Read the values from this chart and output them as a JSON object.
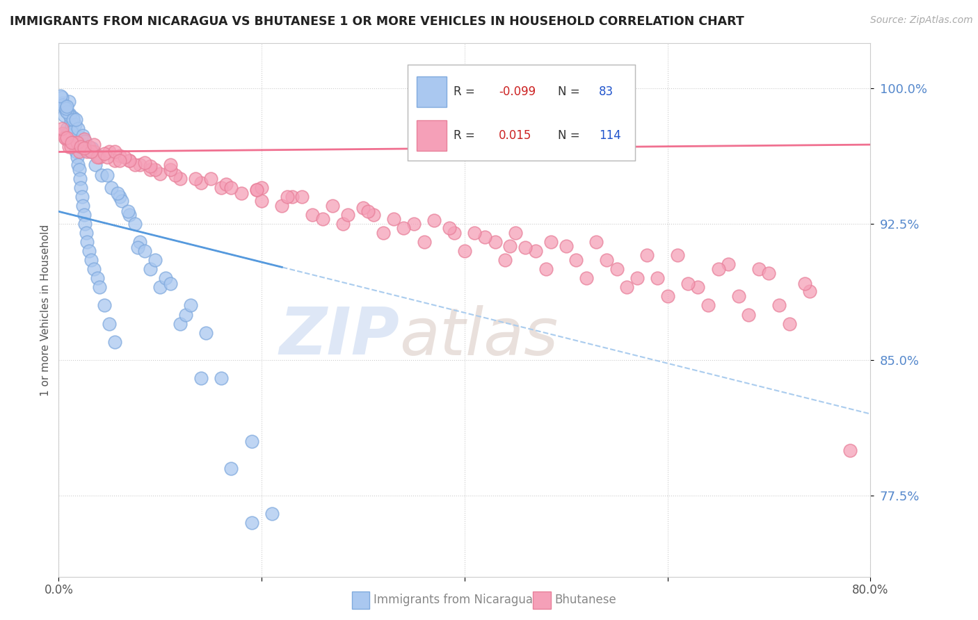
{
  "title": "IMMIGRANTS FROM NICARAGUA VS BHUTANESE 1 OR MORE VEHICLES IN HOUSEHOLD CORRELATION CHART",
  "source": "Source: ZipAtlas.com",
  "xlabel_blue": "Immigrants from Nicaragua",
  "xlabel_pink": "Bhutanese",
  "ylabel": "1 or more Vehicles in Household",
  "xlim": [
    0.0,
    80.0
  ],
  "ylim": [
    73.0,
    102.5
  ],
  "yticks": [
    77.5,
    85.0,
    92.5,
    100.0
  ],
  "xticks": [
    0.0,
    20.0,
    40.0,
    60.0,
    80.0
  ],
  "blue_color": "#aac8f0",
  "pink_color": "#f5a0b8",
  "blue_edge": "#80aade",
  "pink_edge": "#e8809a",
  "trend_blue_color": "#5599dd",
  "trend_pink_color": "#f07090",
  "trend_dashed_color": "#aaccee",
  "legend_blue_r": "-0.099",
  "legend_blue_n": "83",
  "legend_pink_r": "0.015",
  "legend_pink_n": "114",
  "blue_trend_x0": 0.0,
  "blue_trend_y0": 93.2,
  "blue_trend_x1": 80.0,
  "blue_trend_y1": 82.0,
  "blue_solid_x1": 22.0,
  "pink_trend_x0": 0.0,
  "pink_trend_y0": 96.5,
  "pink_trend_x1": 80.0,
  "pink_trend_y1": 96.9,
  "blue_scatter_x": [
    0.4,
    0.5,
    0.6,
    0.7,
    0.8,
    0.9,
    1.0,
    1.1,
    1.2,
    1.3,
    1.4,
    1.5,
    1.6,
    1.7,
    1.8,
    1.9,
    2.0,
    2.1,
    2.2,
    2.3,
    2.4,
    2.5,
    2.6,
    2.7,
    2.8,
    3.0,
    3.2,
    3.5,
    3.8,
    4.0,
    4.5,
    5.0,
    5.5,
    6.0,
    7.0,
    8.0,
    9.0,
    10.0,
    12.0,
    14.0,
    17.0,
    19.0,
    0.3,
    0.6,
    1.1,
    1.6,
    2.2,
    3.1,
    0.4,
    0.8,
    1.3,
    2.0,
    2.7,
    3.6,
    4.2,
    5.2,
    6.2,
    7.5,
    0.2,
    0.7,
    1.4,
    1.9,
    2.4,
    3.3,
    4.8,
    6.8,
    0.8,
    1.7,
    2.6,
    3.9,
    5.8,
    7.8,
    10.5,
    14.5,
    19.0,
    21.0,
    12.5,
    16.0,
    8.5,
    9.5,
    11.0,
    13.0
  ],
  "blue_scatter_y": [
    99.2,
    98.5,
    99.0,
    98.8,
    97.8,
    97.5,
    99.3,
    98.6,
    98.2,
    97.9,
    98.4,
    97.0,
    96.8,
    96.5,
    96.2,
    95.8,
    95.5,
    95.0,
    94.5,
    94.0,
    93.5,
    93.0,
    92.5,
    92.0,
    91.5,
    91.0,
    90.5,
    90.0,
    89.5,
    89.0,
    88.0,
    87.0,
    86.0,
    94.0,
    93.0,
    91.5,
    90.0,
    89.0,
    87.0,
    84.0,
    79.0,
    76.0,
    99.5,
    99.0,
    98.5,
    98.0,
    97.3,
    96.5,
    99.1,
    98.7,
    97.6,
    97.0,
    96.6,
    95.8,
    95.2,
    94.5,
    93.8,
    92.5,
    99.6,
    98.9,
    98.3,
    97.8,
    97.4,
    96.7,
    95.2,
    93.2,
    99.0,
    98.3,
    97.1,
    96.3,
    94.2,
    91.2,
    89.5,
    86.5,
    80.5,
    76.5,
    87.5,
    84.0,
    91.0,
    90.5,
    89.2,
    88.0
  ],
  "pink_scatter_x": [
    0.4,
    0.7,
    1.0,
    1.5,
    2.0,
    2.5,
    3.0,
    3.5,
    4.0,
    5.0,
    6.0,
    7.0,
    8.0,
    9.0,
    10.0,
    12.0,
    14.0,
    16.0,
    18.0,
    20.0,
    22.0,
    25.0,
    28.0,
    32.0,
    36.0,
    40.0,
    44.0,
    48.0,
    52.0,
    56.0,
    60.0,
    64.0,
    68.0,
    72.0,
    0.6,
    1.2,
    1.8,
    2.8,
    3.8,
    5.5,
    7.5,
    9.5,
    11.5,
    13.5,
    16.5,
    19.5,
    23.0,
    27.0,
    31.0,
    35.0,
    39.0,
    43.0,
    47.0,
    51.0,
    55.0,
    59.0,
    63.0,
    67.0,
    71.0,
    0.3,
    0.8,
    1.3,
    2.2,
    3.2,
    4.8,
    7.0,
    9.0,
    11.0,
    15.0,
    20.0,
    24.0,
    30.0,
    37.0,
    45.0,
    53.0,
    61.0,
    69.0,
    2.5,
    4.5,
    6.5,
    8.5,
    26.0,
    34.0,
    42.0,
    50.0,
    58.0,
    66.0,
    74.0,
    5.5,
    11.0,
    3.5,
    17.0,
    46.0,
    62.0,
    30.5,
    70.0,
    38.5,
    54.0,
    22.5,
    6.0,
    78.0,
    33.0,
    41.0,
    28.5,
    57.0,
    65.0,
    73.5,
    48.5,
    19.5,
    44.5
  ],
  "pink_scatter_y": [
    97.5,
    97.2,
    96.8,
    97.0,
    96.5,
    97.2,
    96.8,
    96.5,
    96.2,
    96.5,
    96.3,
    96.0,
    95.8,
    95.5,
    95.3,
    95.0,
    94.8,
    94.5,
    94.2,
    93.8,
    93.5,
    93.0,
    92.5,
    92.0,
    91.5,
    91.0,
    90.5,
    90.0,
    89.5,
    89.0,
    88.5,
    88.0,
    87.5,
    87.0,
    97.3,
    96.8,
    97.0,
    96.5,
    96.2,
    96.0,
    95.8,
    95.5,
    95.2,
    95.0,
    94.7,
    94.4,
    94.0,
    93.5,
    93.0,
    92.5,
    92.0,
    91.5,
    91.0,
    90.5,
    90.0,
    89.5,
    89.0,
    88.5,
    88.0,
    97.8,
    97.3,
    97.0,
    96.8,
    96.5,
    96.2,
    96.0,
    95.7,
    95.5,
    95.0,
    94.5,
    94.0,
    93.4,
    92.7,
    92.0,
    91.5,
    90.8,
    90.0,
    96.7,
    96.4,
    96.2,
    95.9,
    92.8,
    92.3,
    91.8,
    91.3,
    90.8,
    90.3,
    88.8,
    96.5,
    95.8,
    96.9,
    94.5,
    91.2,
    89.2,
    93.2,
    89.8,
    92.3,
    90.5,
    94.0,
    96.0,
    80.0,
    92.8,
    92.0,
    93.0,
    89.5,
    90.0,
    89.2,
    91.5,
    94.4,
    91.3
  ],
  "watermark_zip": "ZIP",
  "watermark_atlas": "atlas"
}
